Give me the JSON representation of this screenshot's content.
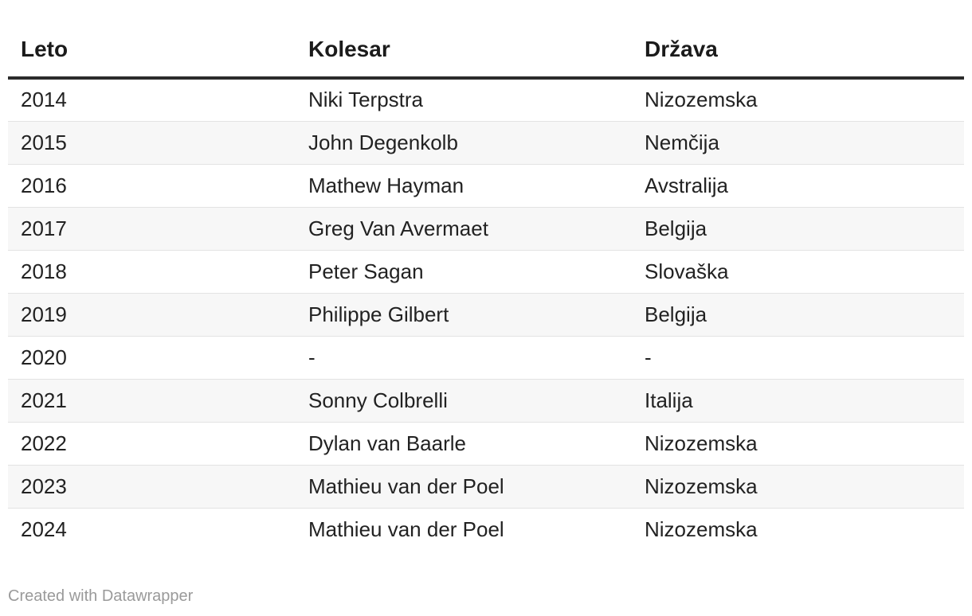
{
  "chart_data": {
    "type": "table",
    "columns": [
      "Leto",
      "Kolesar",
      "Država"
    ],
    "rows": [
      [
        "2014",
        "Niki Terpstra",
        "Nizozemska"
      ],
      [
        "2015",
        "John Degenkolb",
        "Nemčija"
      ],
      [
        "2016",
        "Mathew Hayman",
        "Avstralija"
      ],
      [
        "2017",
        "Greg Van Avermaet",
        "Belgija"
      ],
      [
        "2018",
        "Peter Sagan",
        "Slovaška"
      ],
      [
        "2019",
        "Philippe Gilbert",
        "Belgija"
      ],
      [
        "2020",
        "-",
        "-"
      ],
      [
        "2021",
        "Sonny Colbrelli",
        "Italija"
      ],
      [
        "2022",
        "Dylan van Baarle",
        "Nizozemska"
      ],
      [
        "2023",
        "Mathieu van der Poel",
        "Nizozemska"
      ],
      [
        "2024",
        "Mathieu van der Poel",
        "Nizozemska"
      ]
    ]
  },
  "footer": {
    "credit": "Created with Datawrapper"
  },
  "colors": {
    "header_rule": "#2b2b2b",
    "row_stripe": "#f7f7f7",
    "row_divider": "#e3e3e3",
    "credit_text": "#9a9a9a"
  }
}
